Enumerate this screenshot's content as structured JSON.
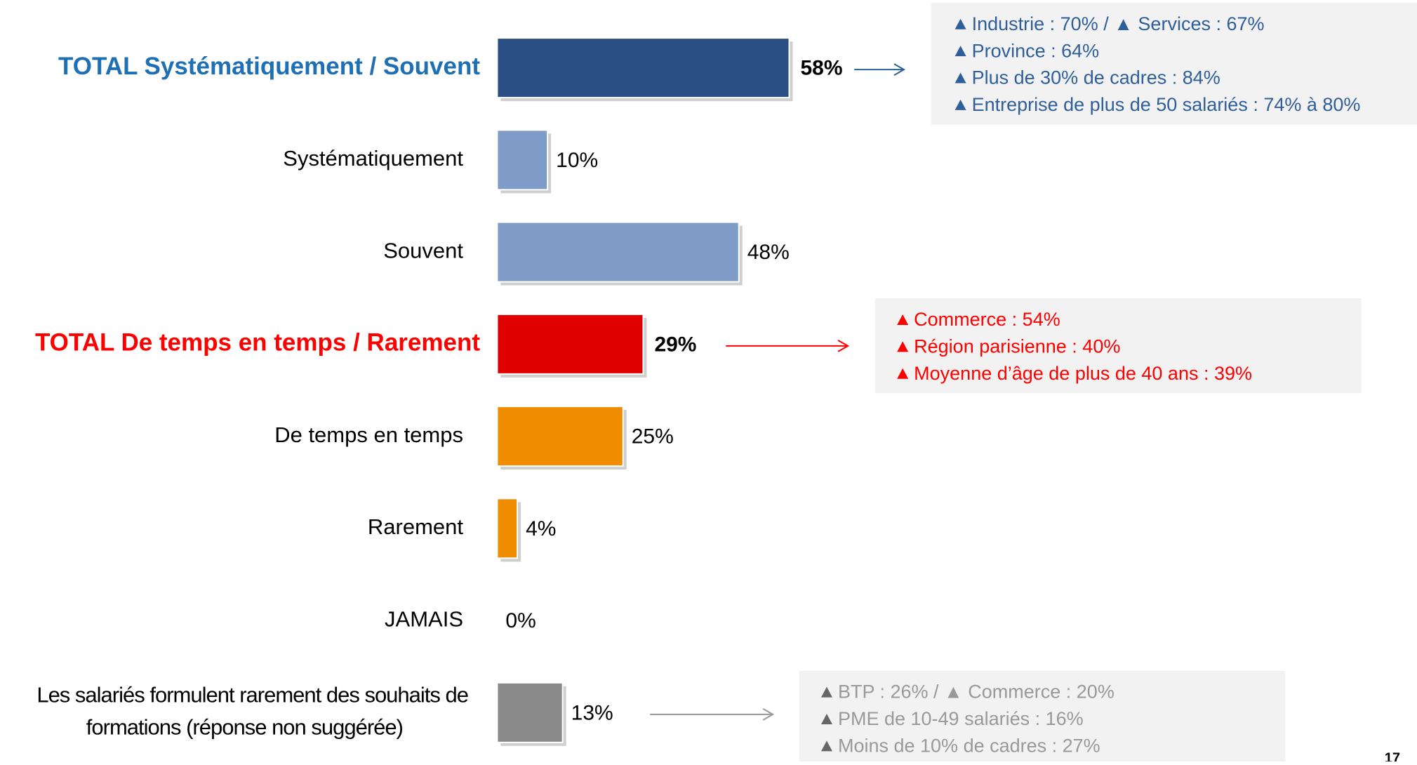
{
  "chart_data": {
    "type": "bar",
    "orientation": "horizontal",
    "categories": [
      "TOTAL Systématiquement / Souvent",
      "Systématiquement",
      "Souvent",
      "TOTAL De temps en temps / Rarement",
      "De temps en temps",
      "Rarement",
      "JAMAIS",
      [
        "Les salariés formulent rarement des souhaits de",
        "formations (réponse non suggérée)"
      ]
    ],
    "values": [
      58,
      10,
      48,
      29,
      25,
      4,
      0,
      13
    ],
    "value_labels": [
      "58%",
      "10%",
      "48%",
      "29%",
      "25%",
      "4%",
      "0%",
      "13%"
    ],
    "colors": [
      "#2b4f85",
      "#7f9cc8",
      "#7f9cc8",
      "#e00000",
      "#ef8c00",
      "#ef8c00",
      "#ef8c00",
      "#8a8a8a"
    ],
    "label_colors": [
      "#1f6fb5",
      "#000000",
      "#000000",
      "#ff0000",
      "#000000",
      "#000000",
      "#000000",
      "#000000"
    ],
    "bold": [
      true,
      false,
      false,
      true,
      false,
      false,
      false,
      false
    ],
    "annotations": [
      {
        "row": 0,
        "color": "#2f5f9a",
        "lines": [
          "Industrie : 70% / ▲ Services : 67%",
          "Province : 64%",
          "Plus de 30% de cadres : 84%",
          "Entreprise de plus de 50 salariés : 74%  à 80%"
        ]
      },
      {
        "row": 3,
        "color": "#ff0000",
        "lines": [
          "Commerce : 54%",
          "Région parisienne : 40%",
          "Moyenne d’âge de plus de 40 ans : 39%"
        ]
      },
      {
        "row": 7,
        "color": "#999999",
        "lines": [
          "BTP : 26%  / ▲ Commerce : 20%",
          "PME de 10-49 salariés : 16%",
          "Moins de 10% de cadres : 27%"
        ]
      }
    ],
    "page_number": "17"
  }
}
